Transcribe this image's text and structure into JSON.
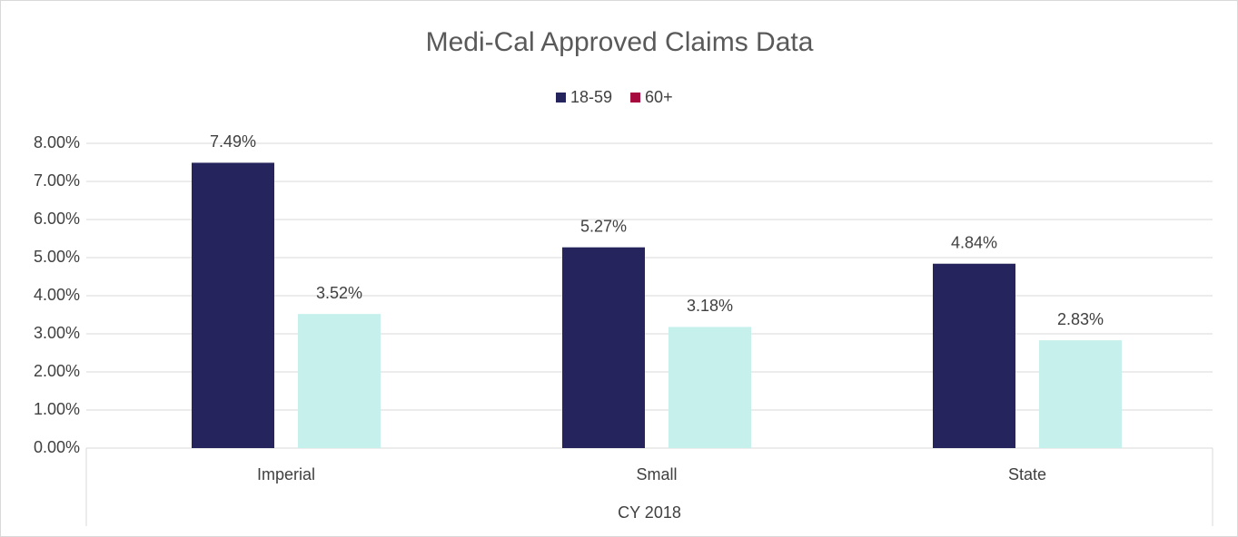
{
  "chart_data": {
    "type": "bar",
    "title": "Medi-Cal Approved Claims Data",
    "categories": [
      "Imperial",
      "Small",
      "State"
    ],
    "group_label": "CY 2018",
    "series": [
      {
        "name": "18-59",
        "color": "#26245c",
        "values": [
          7.49,
          5.27,
          4.84
        ],
        "value_labels": [
          "7.49%",
          "5.27%",
          "4.84%"
        ]
      },
      {
        "name": "60+",
        "color": "#c5f0ec",
        "legend_color": "#a6093d",
        "values": [
          3.52,
          3.18,
          2.83
        ],
        "value_labels": [
          "3.52%",
          "3.18%",
          "2.83%"
        ]
      }
    ],
    "ylim": [
      0,
      8
    ],
    "yticks": [
      {
        "value": 0,
        "label": "0.00%"
      },
      {
        "value": 1,
        "label": "1.00%"
      },
      {
        "value": 2,
        "label": "2.00%"
      },
      {
        "value": 3,
        "label": "3.00%"
      },
      {
        "value": 4,
        "label": "4.00%"
      },
      {
        "value": 5,
        "label": "5.00%"
      },
      {
        "value": 6,
        "label": "6.00%"
      },
      {
        "value": 7,
        "label": "7.00%"
      },
      {
        "value": 8,
        "label": "8.00%"
      }
    ],
    "grid": true,
    "legend": "top"
  }
}
